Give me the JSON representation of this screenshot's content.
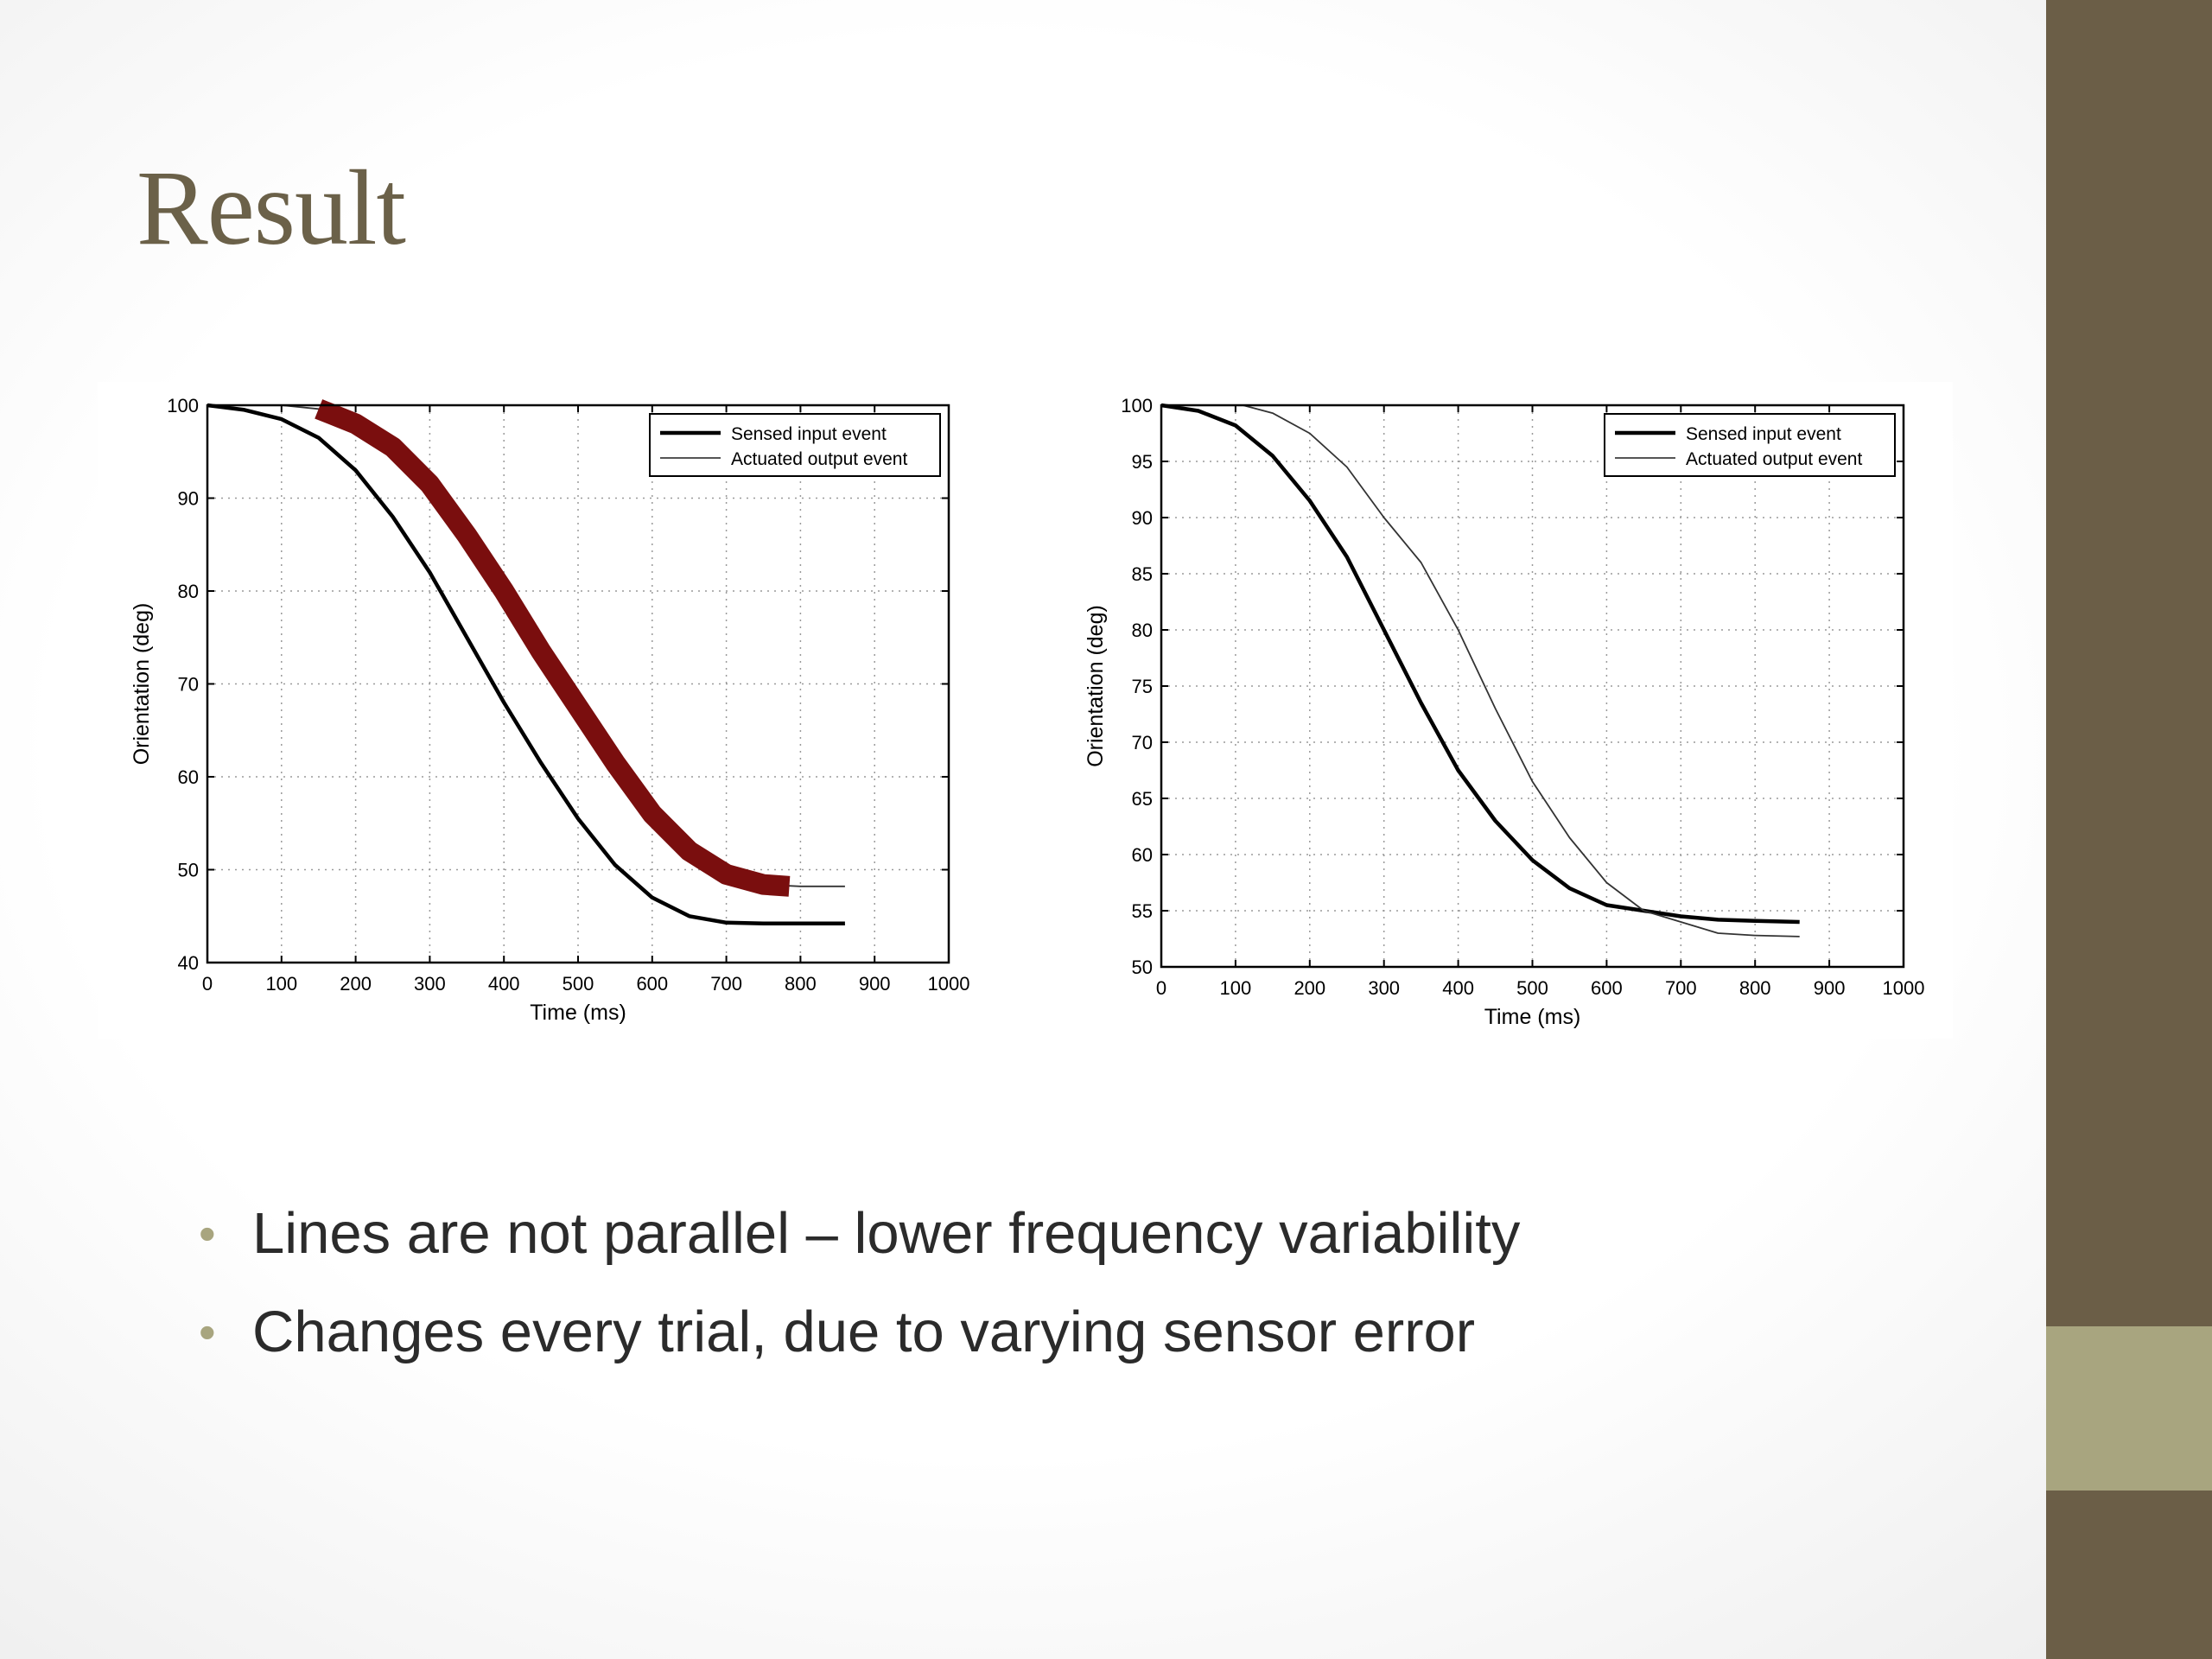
{
  "slide": {
    "title": "Result",
    "bullets": [
      "Lines are not parallel – lower frequency variability",
      "Changes every trial, due to varying sensor error"
    ]
  },
  "theme": {
    "title_color": "#6b6149",
    "sidebar_dark": "#6b5e47",
    "sidebar_light": "#a8a57f",
    "highlight_color": "#7a0e0e",
    "bullet_color": "#a8a57f"
  },
  "chart_data": [
    {
      "type": "line",
      "xlabel": "Time (ms)",
      "ylabel": "Orientation (deg)",
      "xlim": [
        0,
        1000
      ],
      "ylim": [
        40,
        100
      ],
      "xticks": [
        0,
        100,
        200,
        300,
        400,
        500,
        600,
        700,
        800,
        900,
        1000
      ],
      "yticks": [
        40,
        50,
        60,
        70,
        80,
        90,
        100
      ],
      "grid": true,
      "legend": "top-right",
      "series": [
        {
          "name": "Sensed input event",
          "style": "thick",
          "x": [
            0,
            50,
            100,
            150,
            200,
            250,
            300,
            350,
            400,
            450,
            500,
            550,
            600,
            650,
            700,
            750,
            800,
            860
          ],
          "y": [
            100,
            99.5,
            98.5,
            96.5,
            93,
            88,
            82,
            75,
            68,
            61.5,
            55.5,
            50.5,
            47,
            45,
            44.3,
            44.2,
            44.2,
            44.2
          ]
        },
        {
          "name": "Actuated output event",
          "style": "thin",
          "x": [
            0,
            100,
            150,
            200,
            250,
            300,
            350,
            400,
            450,
            500,
            550,
            600,
            650,
            700,
            750,
            800,
            860
          ],
          "y": [
            100,
            100,
            99.6,
            98,
            95.5,
            91.5,
            86,
            80,
            73.5,
            67.5,
            61.5,
            56,
            52,
            49.5,
            48.4,
            48.2,
            48.2
          ]
        }
      ],
      "highlight": {
        "x": [
          150,
          200,
          250,
          300,
          350,
          400,
          450,
          500,
          550,
          600,
          650,
          700,
          750,
          785
        ],
        "y": [
          99.6,
          98,
          95.5,
          91.5,
          86,
          80,
          73.5,
          67.5,
          61.5,
          56,
          52,
          49.5,
          48.4,
          48.2
        ]
      }
    },
    {
      "type": "line",
      "xlabel": "Time (ms)",
      "ylabel": "Orientation (deg)",
      "xlim": [
        0,
        1000
      ],
      "ylim": [
        50,
        100
      ],
      "xticks": [
        0,
        100,
        200,
        300,
        400,
        500,
        600,
        700,
        800,
        900,
        1000
      ],
      "yticks": [
        50,
        55,
        60,
        65,
        70,
        75,
        80,
        85,
        90,
        95,
        100
      ],
      "grid": true,
      "legend": "top-right",
      "series": [
        {
          "name": "Sensed input event",
          "style": "thick",
          "x": [
            0,
            50,
            100,
            150,
            200,
            250,
            300,
            350,
            400,
            450,
            500,
            550,
            600,
            650,
            700,
            750,
            800,
            860
          ],
          "y": [
            100,
            99.5,
            98.2,
            95.5,
            91.5,
            86.5,
            80,
            73.5,
            67.5,
            63,
            59.5,
            57,
            55.5,
            55,
            54.5,
            54.2,
            54.1,
            54
          ]
        },
        {
          "name": "Actuated output event",
          "style": "thin",
          "x": [
            110,
            150,
            200,
            250,
            300,
            350,
            400,
            450,
            500,
            550,
            600,
            650,
            700,
            750,
            800,
            860
          ],
          "y": [
            100,
            99.3,
            97.5,
            94.5,
            90,
            86,
            80,
            73,
            66.5,
            61.5,
            57.5,
            55,
            54,
            53,
            52.8,
            52.7
          ]
        }
      ]
    }
  ]
}
